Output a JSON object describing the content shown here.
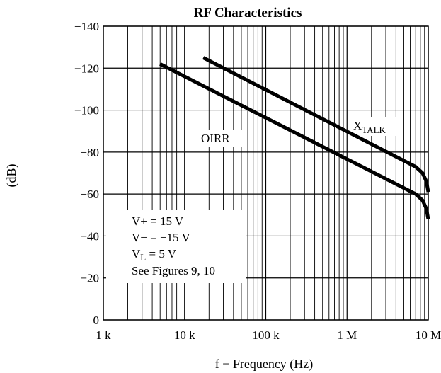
{
  "chart_data": {
    "type": "line",
    "title": "RF Characteristics",
    "xlabel": "f − Frequency (Hz)",
    "ylabel": "(dB)",
    "x_scale": "log",
    "xlim": [
      1000,
      10000000
    ],
    "ylim": [
      0,
      -140
    ],
    "x_tick_labels": [
      "1 k",
      "10 k",
      "100 k",
      "1 M",
      "10 M"
    ],
    "x_tick_values": [
      1000,
      10000,
      100000,
      1000000,
      10000000
    ],
    "y_tick_labels": [
      "0",
      "−20",
      "−40",
      "−60",
      "−80",
      "−100",
      "−120",
      "−140"
    ],
    "y_tick_values": [
      0,
      -20,
      -40,
      -60,
      -80,
      -100,
      -120,
      -140
    ],
    "grid": true,
    "series": [
      {
        "name": "OIRR",
        "x": [
          5000,
          7000000,
          8500000,
          9500000,
          10000000
        ],
        "y": [
          -122,
          -60,
          -57,
          -53,
          -48
        ]
      },
      {
        "name": "XTALK",
        "x": [
          17000,
          7000000,
          8500000,
          9500000,
          10000000
        ],
        "y": [
          -125,
          -73,
          -70,
          -66,
          -61
        ]
      }
    ],
    "series_labels": {
      "oirr": "OIRR",
      "xtalk_main": "X",
      "xtalk_sub": "TALK"
    },
    "annotation": {
      "line1": "V+ = 15 V",
      "line2": "V− = −15 V",
      "line3_main": "V",
      "line3_sub": "L",
      "line3_rest": " = 5 V",
      "line4": "See Figures 9, 10"
    }
  }
}
